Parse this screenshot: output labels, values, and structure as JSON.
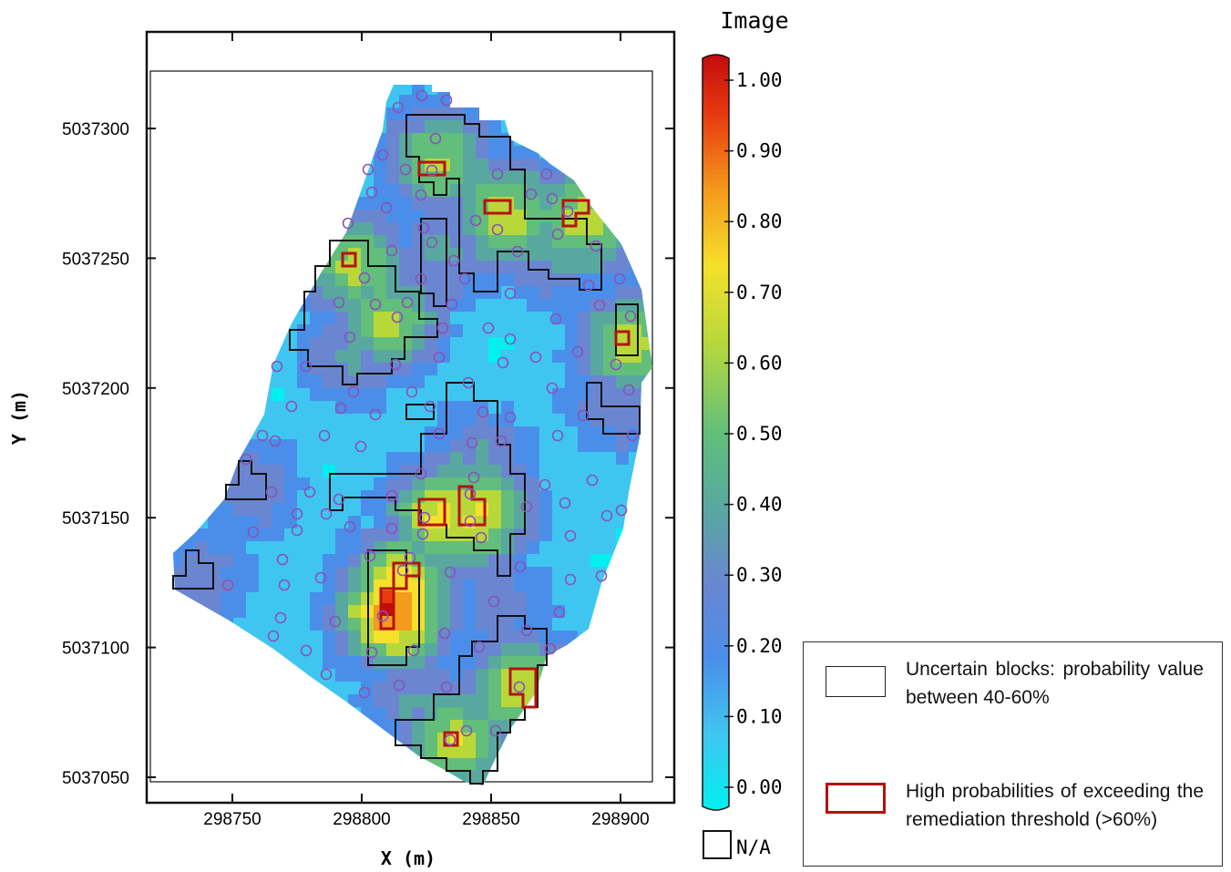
{
  "map": {
    "x_axis_label": "X (m)",
    "y_axis_label": "Y (m)",
    "x_ticks": [
      298750,
      298800,
      298850,
      298900
    ],
    "y_ticks": [
      5037050,
      5037100,
      5037150,
      5037200,
      5037250,
      5037300
    ],
    "x_range": [
      298717,
      298921
    ],
    "y_range": [
      5037035,
      5037336
    ],
    "grid_cell_m": 5,
    "field_color": "#2ee7ec",
    "sample_marker_color": "#8a52b8",
    "uncertain_outline_color": "#111111",
    "high_outline_color": "#b5120c"
  },
  "colorbar": {
    "title": "Image",
    "ticks": [
      "1.00",
      "0.90",
      "0.80",
      "0.70",
      "0.60",
      "0.50",
      "0.40",
      "0.30",
      "0.20",
      "0.10",
      "0.00"
    ],
    "na_label": "N/A",
    "scale": [
      "#00f0f0",
      "#3fc6f0",
      "#4a8eea",
      "#6a86d0",
      "#58a8a0",
      "#62be7a",
      "#b8d83a",
      "#f5e02a",
      "#f49a1c",
      "#e83a10",
      "#c40c0c"
    ]
  },
  "legend": {
    "uncertain_label": "Uncertain blocks: probability value between 40-60%",
    "high_label": "High probabilities of exceeding the remediation threshold (>60%)"
  }
}
